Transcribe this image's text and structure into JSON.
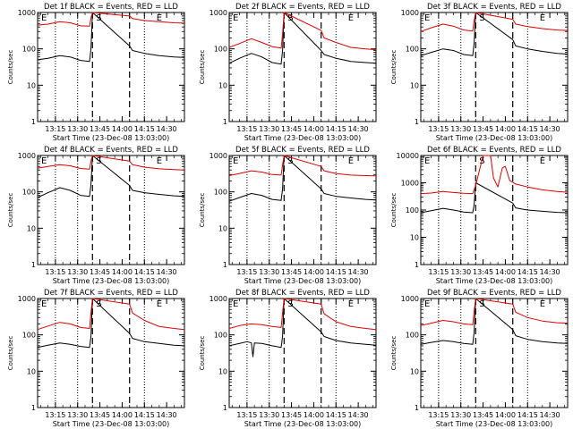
{
  "page": {
    "y_ticks": [
      "1",
      "10",
      "100",
      "1000",
      "10000"
    ],
    "x_ticks": [
      "13:15",
      "13:30",
      "13:45",
      "14:00",
      "14:15",
      "14:30"
    ],
    "ylabel": "Counts/sec",
    "xlabel": "Start Time (23-Dec-08 13:03:00)",
    "marks": [
      "E",
      "S",
      "E"
    ]
  },
  "chart_data": [
    {
      "type": "line",
      "title": "Det 1f BLACK = Events, RED = LLD",
      "ylim": [
        1,
        1000
      ],
      "log_y": true,
      "x_time_range": [
        "13:03",
        "14:42"
      ],
      "vlines_dotted": [
        "13:15",
        "13:30",
        "14:15"
      ],
      "vlines_dashed": [
        "13:40",
        "14:05"
      ],
      "series": [
        {
          "color": "#000000",
          "x": [
            "13:03",
            "13:10",
            "13:18",
            "13:25",
            "13:32",
            "13:38",
            "13:39",
            "13:40",
            "14:05",
            "14:07",
            "14:15",
            "14:25",
            "14:35",
            "14:42"
          ],
          "y": [
            50,
            55,
            65,
            60,
            48,
            45,
            100,
            1000,
            120,
            90,
            75,
            65,
            60,
            58
          ]
        },
        {
          "color": "#dd0000",
          "x": [
            "13:03",
            "13:10",
            "13:18",
            "13:25",
            "13:32",
            "13:38",
            "13:39",
            "13:40",
            "14:05",
            "14:07",
            "14:15",
            "14:25",
            "14:35",
            "14:42"
          ],
          "y": [
            450,
            480,
            560,
            520,
            430,
            420,
            700,
            1000,
            800,
            680,
            600,
            560,
            520,
            510
          ]
        }
      ]
    },
    {
      "type": "line",
      "title": "Det 2f BLACK = Events, RED = LLD",
      "ylim": [
        1,
        1000
      ],
      "log_y": true,
      "x_time_range": [
        "13:03",
        "14:42"
      ],
      "vlines_dotted": [
        "13:15",
        "13:30",
        "14:15"
      ],
      "vlines_dashed": [
        "13:40",
        "14:05"
      ],
      "series": [
        {
          "color": "#000000",
          "x": [
            "13:03",
            "13:10",
            "13:18",
            "13:25",
            "13:32",
            "13:38",
            "13:39",
            "13:40",
            "14:05",
            "14:07",
            "14:15",
            "14:25",
            "14:35",
            "14:42"
          ],
          "y": [
            40,
            55,
            75,
            60,
            42,
            38,
            90,
            1000,
            90,
            70,
            55,
            45,
            42,
            40
          ]
        },
        {
          "color": "#dd0000",
          "x": [
            "13:03",
            "13:10",
            "13:18",
            "13:25",
            "13:32",
            "13:38",
            "13:39",
            "13:40",
            "14:05",
            "14:07",
            "14:15",
            "14:25",
            "14:35",
            "14:42"
          ],
          "y": [
            110,
            140,
            190,
            150,
            115,
            105,
            250,
            1000,
            320,
            200,
            150,
            110,
            100,
            95
          ]
        }
      ]
    },
    {
      "type": "line",
      "title": "Det 3f BLACK = Events, RED = LLD",
      "ylim": [
        1,
        1000
      ],
      "log_y": true,
      "x_time_range": [
        "13:03",
        "14:42"
      ],
      "vlines_dotted": [
        "13:15",
        "13:30",
        "14:15"
      ],
      "vlines_dashed": [
        "13:40",
        "14:05"
      ],
      "series": [
        {
          "color": "#000000",
          "x": [
            "13:03",
            "13:10",
            "13:18",
            "13:25",
            "13:32",
            "13:38",
            "13:39",
            "13:40",
            "14:05",
            "14:07",
            "14:15",
            "14:25",
            "14:35",
            "14:42"
          ],
          "y": [
            65,
            80,
            100,
            90,
            70,
            65,
            150,
            1000,
            180,
            120,
            100,
            85,
            75,
            72
          ]
        },
        {
          "color": "#dd0000",
          "x": [
            "13:03",
            "13:10",
            "13:18",
            "13:25",
            "13:32",
            "13:38",
            "13:39",
            "13:40",
            "14:05",
            "14:07",
            "14:15",
            "14:25",
            "14:35",
            "14:42"
          ],
          "y": [
            300,
            380,
            480,
            420,
            330,
            310,
            600,
            1000,
            650,
            480,
            410,
            360,
            330,
            320
          ]
        }
      ]
    },
    {
      "type": "line",
      "title": "Det 4f BLACK = Events, RED = LLD",
      "ylim": [
        1,
        1000
      ],
      "log_y": true,
      "x_time_range": [
        "13:03",
        "14:42"
      ],
      "vlines_dotted": [
        "13:15",
        "13:30",
        "14:15"
      ],
      "vlines_dashed": [
        "13:40",
        "14:05"
      ],
      "series": [
        {
          "color": "#000000",
          "x": [
            "13:03",
            "13:10",
            "13:18",
            "13:25",
            "13:32",
            "13:38",
            "13:39",
            "13:40",
            "14:05",
            "14:07",
            "14:15",
            "14:25",
            "14:35",
            "14:42"
          ],
          "y": [
            70,
            95,
            130,
            110,
            80,
            75,
            160,
            1000,
            150,
            110,
            95,
            85,
            78,
            75
          ]
        },
        {
          "color": "#dd0000",
          "x": [
            "13:03",
            "13:10",
            "13:18",
            "13:25",
            "13:32",
            "13:38",
            "13:39",
            "13:40",
            "14:05",
            "14:07",
            "14:15",
            "14:25",
            "14:35",
            "14:42"
          ],
          "y": [
            450,
            500,
            560,
            520,
            440,
            420,
            700,
            1000,
            700,
            560,
            480,
            430,
            410,
            400
          ]
        }
      ]
    },
    {
      "type": "line",
      "title": "Det 5f BLACK = Events, RED = LLD",
      "ylim": [
        1,
        1000
      ],
      "log_y": true,
      "x_time_range": [
        "13:03",
        "14:42"
      ],
      "vlines_dotted": [
        "13:15",
        "13:30",
        "14:15"
      ],
      "vlines_dashed": [
        "13:40",
        "14:05"
      ],
      "series": [
        {
          "color": "#000000",
          "x": [
            "13:03",
            "13:10",
            "13:18",
            "13:25",
            "13:32",
            "13:38",
            "13:39",
            "13:40",
            "14:05",
            "14:07",
            "14:15",
            "14:25",
            "14:35",
            "14:42"
          ],
          "y": [
            55,
            70,
            90,
            80,
            62,
            58,
            120,
            1000,
            120,
            90,
            75,
            68,
            62,
            60
          ]
        },
        {
          "color": "#dd0000",
          "x": [
            "13:03",
            "13:10",
            "13:18",
            "13:25",
            "13:32",
            "13:38",
            "13:39",
            "13:40",
            "14:05",
            "14:07",
            "14:15",
            "14:25",
            "14:35",
            "14:42"
          ],
          "y": [
            280,
            320,
            380,
            350,
            300,
            290,
            550,
            1000,
            500,
            380,
            320,
            290,
            280,
            275
          ]
        }
      ]
    },
    {
      "type": "line",
      "title": "Det 6f BLACK = Events, RED = LLD",
      "ylim": [
        1,
        10000
      ],
      "log_y": true,
      "x_time_range": [
        "13:03",
        "14:42"
      ],
      "vlines_dotted": [
        "13:15",
        "13:30",
        "14:15"
      ],
      "vlines_dashed": [
        "13:40",
        "14:05"
      ],
      "series": [
        {
          "color": "#000000",
          "x": [
            "13:03",
            "13:10",
            "13:18",
            "13:25",
            "13:32",
            "13:38",
            "13:39",
            "13:40",
            "14:05",
            "14:07",
            "14:15",
            "14:25",
            "14:35",
            "14:42"
          ],
          "y": [
            80,
            95,
            115,
            100,
            85,
            80,
            160,
            1000,
            180,
            120,
            100,
            90,
            82,
            80
          ]
        },
        {
          "color": "#dd0000",
          "x": [
            "13:03",
            "13:10",
            "13:18",
            "13:25",
            "13:32",
            "13:38",
            "13:40",
            "13:45",
            "13:50",
            "13:52",
            "13:55",
            "13:58",
            "14:00",
            "14:03",
            "14:07",
            "14:15",
            "14:25",
            "14:35",
            "14:42"
          ],
          "y": [
            400,
            420,
            480,
            440,
            410,
            400,
            800,
            10000,
            10000,
            1500,
            700,
            3500,
            4000,
            1200,
            900,
            700,
            550,
            480,
            450
          ]
        }
      ]
    },
    {
      "type": "line",
      "title": "Det 7f BLACK = Events, RED = LLD",
      "ylim": [
        1,
        1000
      ],
      "log_y": true,
      "x_time_range": [
        "13:03",
        "14:42"
      ],
      "vlines_dotted": [
        "13:15",
        "13:30",
        "14:15"
      ],
      "vlines_dashed": [
        "13:40",
        "14:05"
      ],
      "series": [
        {
          "color": "#000000",
          "x": [
            "13:03",
            "13:10",
            "13:18",
            "13:25",
            "13:32",
            "13:38",
            "13:39",
            "13:40",
            "14:05",
            "14:07",
            "14:15",
            "14:25",
            "14:35",
            "14:42"
          ],
          "y": [
            45,
            52,
            60,
            55,
            48,
            45,
            90,
            1000,
            110,
            80,
            65,
            58,
            52,
            50
          ]
        },
        {
          "color": "#dd0000",
          "x": [
            "13:03",
            "13:10",
            "13:18",
            "13:25",
            "13:32",
            "13:38",
            "13:39",
            "13:40",
            "14:05",
            "14:07",
            "14:15",
            "14:25",
            "14:35",
            "14:42"
          ],
          "y": [
            140,
            175,
            220,
            200,
            160,
            150,
            400,
            1000,
            700,
            400,
            250,
            170,
            150,
            140
          ]
        }
      ]
    },
    {
      "type": "line",
      "title": "Det 8f BLACK = Events, RED = LLD",
      "ylim": [
        1,
        1000
      ],
      "log_y": true,
      "x_time_range": [
        "13:03",
        "14:42"
      ],
      "vlines_dotted": [
        "13:15",
        "13:30",
        "14:15"
      ],
      "vlines_dashed": [
        "13:40",
        "14:05"
      ],
      "series": [
        {
          "color": "#000000",
          "x": [
            "13:03",
            "13:10",
            "13:15",
            "13:18",
            "13:19",
            "13:20",
            "13:25",
            "13:32",
            "13:38",
            "13:39",
            "13:40",
            "14:05",
            "14:07",
            "14:15",
            "14:25",
            "14:35",
            "14:42"
          ],
          "y": [
            50,
            58,
            65,
            60,
            25,
            60,
            58,
            50,
            45,
            90,
            1000,
            120,
            90,
            70,
            60,
            55,
            52
          ]
        },
        {
          "color": "#dd0000",
          "x": [
            "13:03",
            "13:10",
            "13:18",
            "13:25",
            "13:32",
            "13:38",
            "13:39",
            "13:40",
            "14:05",
            "14:07",
            "14:15",
            "14:25",
            "14:35",
            "14:42"
          ],
          "y": [
            150,
            180,
            200,
            190,
            170,
            160,
            400,
            1000,
            700,
            380,
            230,
            170,
            150,
            140
          ]
        }
      ]
    },
    {
      "type": "line",
      "title": "Det 9f BLACK = Events, RED = LLD",
      "ylim": [
        1,
        1000
      ],
      "log_y": true,
      "x_time_range": [
        "13:03",
        "14:42"
      ],
      "vlines_dotted": [
        "13:15",
        "13:30",
        "14:15"
      ],
      "vlines_dashed": [
        "13:40",
        "14:05"
      ],
      "series": [
        {
          "color": "#000000",
          "x": [
            "13:03",
            "13:10",
            "13:18",
            "13:25",
            "13:32",
            "13:38",
            "13:39",
            "13:40",
            "14:05",
            "14:07",
            "14:15",
            "14:25",
            "14:35",
            "14:42"
          ],
          "y": [
            55,
            62,
            70,
            65,
            58,
            55,
            120,
            1000,
            140,
            95,
            75,
            65,
            60,
            58
          ]
        },
        {
          "color": "#dd0000",
          "x": [
            "13:03",
            "13:10",
            "13:18",
            "13:25",
            "13:32",
            "13:38",
            "13:39",
            "13:40",
            "14:05",
            "14:07",
            "14:15",
            "14:25",
            "14:35",
            "14:42"
          ],
          "y": [
            180,
            210,
            250,
            230,
            200,
            190,
            450,
            1000,
            700,
            420,
            300,
            240,
            215,
            210
          ]
        }
      ]
    }
  ]
}
